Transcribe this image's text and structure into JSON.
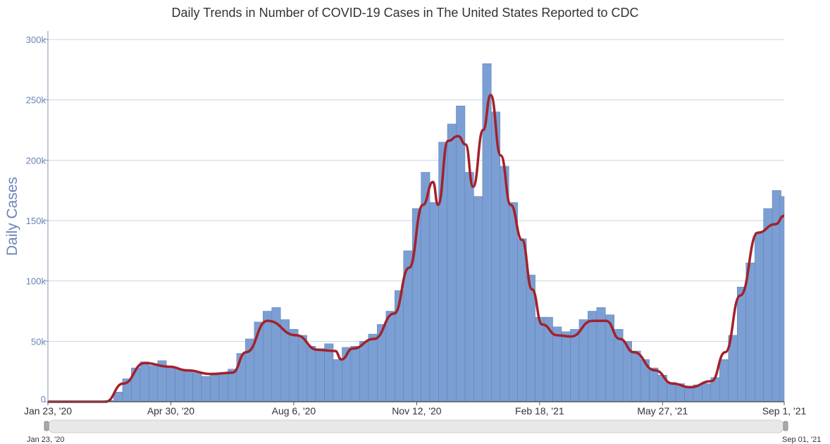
{
  "chart_data": {
    "type": "bar",
    "title": "Daily Trends in Number of COVID-19 Cases in The United States Reported to CDC",
    "xlabel": "",
    "ylabel": "Daily Cases",
    "xlim": [
      "2020-01-23",
      "2021-09-01"
    ],
    "ylim": [
      0,
      300000
    ],
    "grid": true,
    "legend": "none",
    "yticks": [
      0,
      50000,
      100000,
      150000,
      200000,
      250000,
      300000
    ],
    "ytick_labels": [
      "0",
      "50k",
      "100k",
      "150k",
      "200k",
      "250k",
      "300k"
    ],
    "xticks": [
      "2020-01-23",
      "2020-04-30",
      "2020-08-06",
      "2020-11-12",
      "2021-02-18",
      "2021-05-27",
      "2021-09-01"
    ],
    "xtick_labels": [
      "Jan 23, '20",
      "Apr 30, '20",
      "Aug 6, '20",
      "Nov 12, '20",
      "Feb 18, '21",
      "May 27, '21",
      "Sep 1, '21"
    ],
    "colors": {
      "bars": "#7b9fd3",
      "bar_edge": "#5a7fba",
      "average_line": "#a3212b",
      "grid": "#c9d4e8"
    },
    "bars": {
      "dates": [
        "2020-01-23",
        "2020-01-30",
        "2020-02-06",
        "2020-02-13",
        "2020-02-20",
        "2020-02-27",
        "2020-03-05",
        "2020-03-12",
        "2020-03-19",
        "2020-03-26",
        "2020-04-02",
        "2020-04-09",
        "2020-04-16",
        "2020-04-23",
        "2020-04-30",
        "2020-05-07",
        "2020-05-14",
        "2020-05-21",
        "2020-05-28",
        "2020-06-04",
        "2020-06-11",
        "2020-06-18",
        "2020-06-25",
        "2020-07-02",
        "2020-07-09",
        "2020-07-16",
        "2020-07-23",
        "2020-07-30",
        "2020-08-06",
        "2020-08-13",
        "2020-08-20",
        "2020-08-27",
        "2020-09-03",
        "2020-09-10",
        "2020-09-17",
        "2020-09-24",
        "2020-10-01",
        "2020-10-08",
        "2020-10-15",
        "2020-10-22",
        "2020-10-29",
        "2020-11-05",
        "2020-11-12",
        "2020-11-19",
        "2020-11-26",
        "2020-12-03",
        "2020-12-10",
        "2020-12-17",
        "2020-12-24",
        "2020-12-31",
        "2021-01-07",
        "2021-01-14",
        "2021-01-21",
        "2021-01-28",
        "2021-02-04",
        "2021-02-11",
        "2021-02-18",
        "2021-02-25",
        "2021-03-04",
        "2021-03-11",
        "2021-03-18",
        "2021-03-25",
        "2021-04-01",
        "2021-04-08",
        "2021-04-15",
        "2021-04-22",
        "2021-04-29",
        "2021-05-06",
        "2021-05-13",
        "2021-05-20",
        "2021-05-27",
        "2021-06-03",
        "2021-06-10",
        "2021-06-17",
        "2021-06-24",
        "2021-07-01",
        "2021-07-08",
        "2021-07-15",
        "2021-07-22",
        "2021-07-29",
        "2021-08-05",
        "2021-08-12",
        "2021-08-19",
        "2021-08-26",
        "2021-09-01"
      ],
      "values": [
        0,
        0,
        0,
        0,
        0,
        0,
        300,
        1000,
        8000,
        19000,
        28000,
        33000,
        30000,
        34000,
        29000,
        27000,
        25000,
        24000,
        21000,
        22000,
        23000,
        27000,
        40000,
        52000,
        66000,
        75000,
        78000,
        68000,
        60000,
        55000,
        46000,
        44000,
        48000,
        35000,
        45000,
        46000,
        50000,
        56000,
        64000,
        75000,
        92000,
        125000,
        160000,
        190000,
        165000,
        215000,
        230000,
        245000,
        190000,
        170000,
        280000,
        240000,
        195000,
        165000,
        135000,
        105000,
        70000,
        70000,
        62000,
        58000,
        60000,
        68000,
        75000,
        78000,
        72000,
        60000,
        50000,
        42000,
        35000,
        28000,
        22000,
        16000,
        15000,
        13000,
        14000,
        15000,
        20000,
        35000,
        55000,
        95000,
        115000,
        140000,
        160000,
        175000,
        170000
      ]
    },
    "average": {
      "dates": [
        "2020-01-23",
        "2020-03-09",
        "2020-03-23",
        "2020-04-09",
        "2020-04-29",
        "2020-05-13",
        "2020-06-01",
        "2020-06-18",
        "2020-06-29",
        "2020-07-16",
        "2020-08-08",
        "2020-08-25",
        "2020-09-08",
        "2020-09-13",
        "2020-09-22",
        "2020-10-09",
        "2020-10-25",
        "2020-11-06",
        "2020-11-17",
        "2020-11-25",
        "2020-11-29",
        "2020-12-07",
        "2020-12-15",
        "2020-12-21",
        "2020-12-27",
        "2021-01-04",
        "2021-01-10",
        "2021-01-18",
        "2021-01-26",
        "2021-02-04",
        "2021-02-12",
        "2021-02-20",
        "2021-03-04",
        "2021-03-15",
        "2021-04-01",
        "2021-04-12",
        "2021-04-23",
        "2021-05-04",
        "2021-05-21",
        "2021-06-04",
        "2021-06-18",
        "2021-07-05",
        "2021-07-16",
        "2021-07-28",
        "2021-08-11",
        "2021-08-25",
        "2021-09-01"
      ],
      "values": [
        0,
        0,
        15000,
        32000,
        29000,
        26000,
        23000,
        24000,
        41000,
        67000,
        55000,
        43000,
        42000,
        35000,
        44000,
        52000,
        73000,
        111000,
        163000,
        182000,
        163000,
        216000,
        220000,
        213000,
        178000,
        225000,
        254000,
        204000,
        163000,
        134000,
        93000,
        64000,
        55000,
        54000,
        67000,
        67000,
        52000,
        41000,
        26000,
        15000,
        12000,
        17000,
        41000,
        88000,
        140000,
        147000,
        154000
      ]
    }
  },
  "range_slider": {
    "start_label": "Jan 23, '20",
    "end_label": "Sep 01, '21"
  }
}
